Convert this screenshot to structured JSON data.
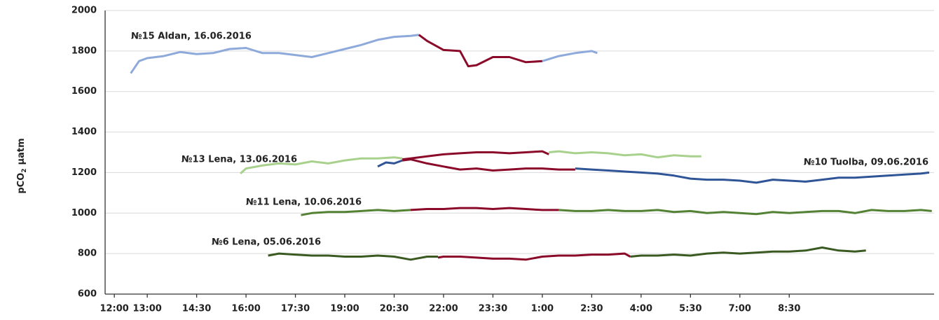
{
  "chart_data": {
    "type": "line",
    "y_label": {
      "text": "pCO",
      "subscript": "2",
      "unit": "µatm"
    },
    "xlim": [
      11.72,
      36.9
    ],
    "xticks": [
      {
        "value": 12,
        "label": "12:00"
      },
      {
        "value": 13,
        "label": "13:00"
      },
      {
        "value": 14.5,
        "label": "14:30"
      },
      {
        "value": 16,
        "label": "16:00"
      },
      {
        "value": 17.5,
        "label": "17:30"
      },
      {
        "value": 19,
        "label": "19:00"
      },
      {
        "value": 20.5,
        "label": "20:30"
      },
      {
        "value": 22,
        "label": "22:00"
      },
      {
        "value": 23.5,
        "label": "23:30"
      },
      {
        "value": 25,
        "label": "1:00"
      },
      {
        "value": 26.5,
        "label": "2:30"
      },
      {
        "value": 28,
        "label": "4:00"
      },
      {
        "value": 29.5,
        "label": "5:30"
      },
      {
        "value": 31,
        "label": "7:00"
      },
      {
        "value": 32.5,
        "label": "8:30"
      }
    ],
    "ylim": [
      600,
      2000
    ],
    "yticks": [
      600,
      800,
      1000,
      1200,
      1400,
      1600,
      1800,
      2000
    ],
    "grid": true,
    "series": [
      {
        "name": "№15 Aldan, 16.06.2016",
        "color": "#8eaadb",
        "x": [
          12.5,
          12.75,
          13,
          13.5,
          14,
          14.5,
          15,
          15.5,
          16,
          16.5,
          17,
          17.5,
          18,
          18.5,
          19,
          19.5,
          20,
          20.5,
          21,
          21.25
        ],
        "values": [
          1690,
          1750,
          1765,
          1775,
          1795,
          1785,
          1790,
          1810,
          1815,
          1790,
          1790,
          1780,
          1770,
          1790,
          1810,
          1830,
          1855,
          1870,
          1875,
          1880
        ]
      },
      {
        "color": "#8b0a2a",
        "x": [
          21.25,
          21.5,
          22,
          22.5,
          22.75,
          23,
          23.5,
          24,
          24.5,
          25
        ],
        "values": [
          1880,
          1850,
          1805,
          1800,
          1725,
          1730,
          1770,
          1770,
          1745,
          1750
        ]
      },
      {
        "color": "#8eaadb",
        "x": [
          25,
          25.5,
          26,
          26.5,
          26.67
        ],
        "values": [
          1750,
          1775,
          1790,
          1800,
          1790
        ]
      },
      {
        "name": "№13 Lena, 13.06.2016",
        "color": "#a9d18e",
        "x": [
          15.83,
          16,
          16.5,
          17,
          17.5,
          18,
          18.5,
          19,
          19.5,
          20,
          20.5,
          20.75
        ],
        "values": [
          1195,
          1220,
          1235,
          1245,
          1240,
          1255,
          1245,
          1260,
          1270,
          1270,
          1275,
          1270
        ]
      },
      {
        "color": "#8b0a2a",
        "x": [
          20.75,
          21,
          21.5,
          22,
          22.5,
          23,
          23.5,
          24,
          24.5,
          25,
          25.2
        ],
        "values": [
          1265,
          1270,
          1280,
          1290,
          1295,
          1300,
          1300,
          1295,
          1300,
          1305,
          1290
        ]
      },
      {
        "color": "#a9d18e",
        "x": [
          25.2,
          25.5,
          26,
          26.5,
          27,
          27.5,
          28,
          28.5,
          29,
          29.5,
          29.83
        ],
        "values": [
          1300,
          1305,
          1295,
          1300,
          1295,
          1285,
          1290,
          1275,
          1285,
          1280,
          1280
        ]
      },
      {
        "name": "№10 Tuolba, 09.06.2016",
        "color": "#2f5597",
        "x": [
          20,
          20.25,
          20.5,
          20.75
        ],
        "values": [
          1230,
          1250,
          1245,
          1260
        ]
      },
      {
        "color": "#8b0a2a",
        "x": [
          20.75,
          21,
          21.5,
          22,
          22.5,
          23,
          23.5,
          24,
          24.5,
          25,
          25.5,
          26
        ],
        "values": [
          1260,
          1265,
          1245,
          1230,
          1215,
          1220,
          1210,
          1215,
          1220,
          1220,
          1215,
          1215
        ]
      },
      {
        "color": "#2f5597",
        "x": [
          26,
          26.5,
          27,
          27.5,
          28,
          28.5,
          29,
          29.5,
          30,
          30.5,
          31,
          31.5,
          32,
          32.5,
          33,
          33.5,
          34,
          34.5,
          35,
          35.5,
          36,
          36.5,
          36.75
        ],
        "values": [
          1220,
          1215,
          1210,
          1205,
          1200,
          1195,
          1185,
          1170,
          1165,
          1165,
          1160,
          1150,
          1165,
          1160,
          1155,
          1165,
          1175,
          1175,
          1180,
          1185,
          1190,
          1195,
          1200
        ]
      },
      {
        "name": "№11 Lena, 10.06.2016",
        "color": "#548235",
        "x": [
          17.67,
          18,
          18.5,
          19,
          19.5,
          20,
          20.5,
          21
        ],
        "values": [
          990,
          1000,
          1005,
          1005,
          1010,
          1015,
          1010,
          1015
        ]
      },
      {
        "color": "#8b0a2a",
        "x": [
          21,
          21.5,
          22,
          22.5,
          23,
          23.5,
          24,
          24.5,
          25,
          25.5
        ],
        "values": [
          1015,
          1020,
          1020,
          1025,
          1025,
          1020,
          1025,
          1020,
          1015,
          1015
        ]
      },
      {
        "color": "#548235",
        "x": [
          25.5,
          26,
          26.5,
          27,
          27.5,
          28,
          28.5,
          29,
          29.5,
          30,
          30.5,
          31,
          31.5,
          32,
          32.5,
          33,
          33.5,
          34,
          34.5,
          35,
          35.5,
          36,
          36.5,
          36.83
        ],
        "values": [
          1015,
          1010,
          1010,
          1015,
          1010,
          1010,
          1015,
          1005,
          1010,
          1000,
          1005,
          1000,
          995,
          1005,
          1000,
          1005,
          1010,
          1010,
          1000,
          1015,
          1010,
          1010,
          1015,
          1010
        ]
      },
      {
        "name": "№6 Lena, 05.06.2016",
        "color": "#3a5a22",
        "x": [
          16.67,
          17,
          17.5,
          18,
          18.5,
          19,
          19.5,
          20,
          20.5,
          21,
          21.5,
          21.83
        ],
        "values": [
          790,
          800,
          795,
          790,
          790,
          785,
          785,
          790,
          785,
          770,
          785,
          785
        ]
      },
      {
        "color": "#8b0a2a",
        "x": [
          21.83,
          22,
          22.5,
          23,
          23.5,
          24,
          24.5,
          25,
          25.5,
          26,
          26.5,
          27,
          27.5,
          27.67
        ],
        "values": [
          780,
          785,
          785,
          780,
          775,
          775,
          770,
          785,
          790,
          790,
          795,
          795,
          800,
          785
        ]
      },
      {
        "color": "#3a5a22",
        "x": [
          27.67,
          28,
          28.5,
          29,
          29.5,
          30,
          30.5,
          31,
          31.5,
          32,
          32.5,
          33,
          33.5,
          34,
          34.5,
          34.83
        ],
        "values": [
          785,
          790,
          790,
          795,
          790,
          800,
          805,
          800,
          805,
          810,
          810,
          815,
          830,
          815,
          810,
          815
        ]
      }
    ]
  }
}
